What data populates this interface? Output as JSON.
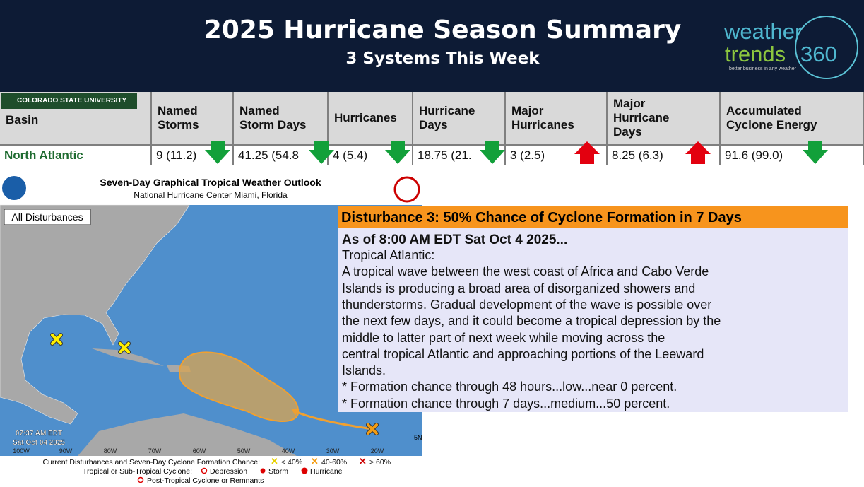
{
  "header": {
    "title": "2025 Hurricane Season Summary",
    "subtitle": "3 Systems This Week"
  },
  "logo": {
    "word1": "weather",
    "word2": "trends",
    "word3": "360",
    "tagline": "better business in any weather"
  },
  "table": {
    "badge": "COLORADO STATE UNIVERSITY",
    "columns": [
      [
        "Basin"
      ],
      [
        "Named",
        "Storms"
      ],
      [
        "Named",
        "Storm Days"
      ],
      [
        "Hurricanes"
      ],
      [
        "Hurricane",
        "Days"
      ],
      [
        "Major",
        "Hurricanes"
      ],
      [
        "Major",
        "Hurricane",
        "Days"
      ],
      [
        "Accumulated",
        "Cyclone Energy"
      ]
    ],
    "rows": [
      [
        "North Atlantic",
        "9 (11.2)",
        "41.25 (54.8",
        "4 (5.4)",
        "18.75 (21.",
        "3 (2.5)",
        "8.25 (6.3)",
        "91.6 (99.0)"
      ]
    ]
  },
  "map": {
    "title": "Seven-Day Graphical Tropical Weather Outlook",
    "subtitle": "National Hurricane Center  Miami, Florida",
    "filter": "All Disturbances",
    "time": "07:37 AM EDT",
    "date": "Sat Oct 04 2025",
    "longitudes": [
      "100W",
      "90W",
      "80W",
      "70W",
      "60W",
      "50W",
      "40W",
      "30W",
      "20W"
    ],
    "latitude": "5N",
    "legend": {
      "line1": "Current Disturbances and Seven-Day Cyclone Formation Chance:",
      "low": "< 40%",
      "medium": "40-60%",
      "high": "> 60%",
      "line2": "Tropical or Sub-Tropical Cyclone:",
      "depression": "Depression",
      "storm": "Storm",
      "hurricane": "Hurricane",
      "line3": "Post-Tropical Cyclone or Remnants"
    }
  },
  "outlook": {
    "heading": "Disturbance 3: 50% Chance of Cyclone Formation in 7 Days",
    "as_of": "As of 8:00 AM EDT Sat Oct 4 2025...",
    "lines": [
      "Tropical Atlantic:",
      "A tropical wave between the west coast of Africa and Cabo Verde",
      "Islands is producing a broad area of disorganized showers and",
      "thunderstorms. Gradual development of the wave is possible over",
      "the next few days, and it could become a tropical depression by the",
      "middle to latter part of next week while moving across the",
      "central tropical Atlantic and approaching portions of the Leeward",
      "Islands.",
      "* Formation chance through 48 hours...low...near 0 percent.",
      "* Formation chance through 7 days...medium...50 percent."
    ]
  }
}
